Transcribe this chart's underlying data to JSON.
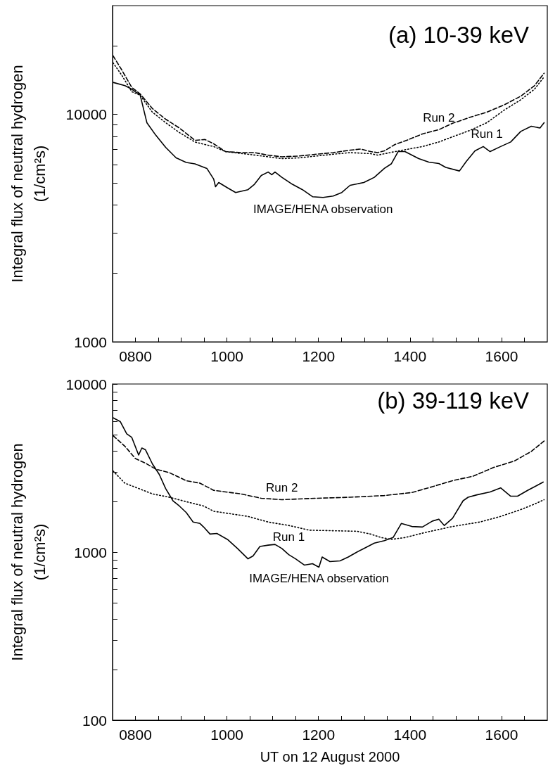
{
  "chart_data": [
    {
      "type": "line",
      "title": "(a) 10-39 keV",
      "ylabel": "Integral flux of neutral hydrogen\n(1/cm²s)",
      "log": "y",
      "grid": false,
      "xlim": [
        750,
        1700
      ],
      "ylim": [
        1000,
        30000
      ],
      "xticks": [
        {
          "value": 800,
          "label": "0800"
        },
        {
          "value": 850,
          "label": null
        },
        {
          "value": 900,
          "label": null
        },
        {
          "value": 950,
          "label": null
        },
        1000,
        {
          "value": 1050,
          "label": null
        },
        {
          "value": 1100,
          "label": null
        },
        {
          "value": 1150,
          "label": null
        },
        1200,
        {
          "value": 1250,
          "label": null
        },
        {
          "value": 1300,
          "label": null
        },
        {
          "value": 1350,
          "label": null
        },
        1400,
        {
          "value": 1450,
          "label": null
        },
        {
          "value": 1500,
          "label": null
        },
        {
          "value": 1550,
          "label": null
        },
        1600,
        {
          "value": 1650,
          "label": null
        }
      ],
      "yticks": [
        1000,
        {
          "value": 2000,
          "label": null
        },
        {
          "value": 3000,
          "label": null
        },
        {
          "value": 4000,
          "label": null
        },
        {
          "value": 5000,
          "label": null
        },
        {
          "value": 6000,
          "label": null
        },
        {
          "value": 7000,
          "label": null
        },
        {
          "value": 8000,
          "label": null
        },
        {
          "value": 9000,
          "label": null
        },
        10000,
        {
          "value": 20000,
          "label": null
        }
      ],
      "series": [
        {
          "color": "#000000",
          "line_style": "solid",
          "x": [
            751,
            777,
            792,
            803,
            810,
            825,
            844,
            866,
            889,
            911,
            930,
            956,
            971,
            975,
            982,
            1001,
            1019,
            1046,
            1060,
            1075,
            1090,
            1098,
            1105,
            1120,
            1143,
            1165,
            1187,
            1210,
            1232,
            1251,
            1269,
            1299,
            1322,
            1344,
            1359,
            1374,
            1389,
            1419,
            1441,
            1463,
            1478,
            1508,
            1523,
            1542,
            1560,
            1575,
            1598,
            1620,
            1642,
            1665,
            1684,
            1693
          ],
          "values": [
            13800,
            13350,
            12880,
            12430,
            12210,
            9180,
            8110,
            7150,
            6430,
            6140,
            6050,
            5780,
            5190,
            4800,
            5010,
            4750,
            4530,
            4660,
            4920,
            5380,
            5570,
            5420,
            5570,
            5280,
            4920,
            4660,
            4340,
            4310,
            4370,
            4530,
            4870,
            5010,
            5280,
            5780,
            6050,
            6850,
            6850,
            6380,
            6160,
            6070,
            5840,
            5630,
            6200,
            6900,
            7210,
            6850,
            7210,
            7550,
            8400,
            8850,
            8700,
            9180
          ]
        },
        {
          "color": "#000000",
          "line_style": "dashed",
          "x": [
            751,
            770,
            792,
            810,
            837,
            866,
            896,
            930,
            952,
            971,
            997,
            1031,
            1060,
            1090,
            1120,
            1157,
            1195,
            1232,
            1269,
            1292,
            1314,
            1329,
            1344,
            1367,
            1397,
            1427,
            1463,
            1493,
            1531,
            1568,
            1605,
            1642,
            1672,
            1693
          ],
          "values": [
            18070,
            15670,
            13110,
            12300,
            10590,
            9510,
            8700,
            7680,
            7740,
            7410,
            6850,
            6780,
            6780,
            6610,
            6500,
            6550,
            6670,
            6780,
            6950,
            7030,
            6850,
            6780,
            6900,
            7360,
            7740,
            8190,
            8550,
            9120,
            9690,
            10210,
            10970,
            12000,
            13350,
            15130
          ]
        },
        {
          "color": "#000000",
          "line_style": "dotted",
          "x": [
            751,
            770,
            792,
            810,
            837,
            866,
            896,
            930,
            952,
            971,
            997,
            1046,
            1090,
            1120,
            1157,
            1195,
            1232,
            1269,
            1314,
            1329,
            1367,
            1397,
            1427,
            1463,
            1493,
            1531,
            1568,
            1605,
            1642,
            1672,
            1693
          ],
          "values": [
            16830,
            14850,
            12560,
            12130,
            10210,
            9180,
            8310,
            7550,
            7360,
            7210,
            6850,
            6670,
            6500,
            6380,
            6430,
            6550,
            6670,
            6780,
            6710,
            6610,
            6850,
            7030,
            7210,
            7550,
            7960,
            8490,
            9180,
            10400,
            11570,
            12880,
            14590
          ]
        }
      ],
      "annotations": [
        {
          "text": "Run 2",
          "x": 1463,
          "y": 8550
        },
        {
          "text": "Run 1",
          "x": 1568,
          "y": 9180
        },
        {
          "text": "IMAGE/HENA observation",
          "x": 1210,
          "y": 4310
        }
      ]
    },
    {
      "type": "line",
      "title": "(b) 39-119 keV",
      "xlabel": "UT on 12 August 2000",
      "ylabel": "Integral flux of neutral hydrogen\n(1/cm²s)",
      "log": "y",
      "grid": false,
      "xlim": [
        750,
        1700
      ],
      "ylim": [
        100,
        10000
      ],
      "xticks": [
        {
          "value": 800,
          "label": "0800"
        },
        {
          "value": 850,
          "label": null
        },
        {
          "value": 900,
          "label": null
        },
        {
          "value": 950,
          "label": null
        },
        1000,
        {
          "value": 1050,
          "label": null
        },
        {
          "value": 1100,
          "label": null
        },
        {
          "value": 1150,
          "label": null
        },
        1200,
        {
          "value": 1250,
          "label": null
        },
        {
          "value": 1300,
          "label": null
        },
        {
          "value": 1350,
          "label": null
        },
        1400,
        {
          "value": 1450,
          "label": null
        },
        {
          "value": 1500,
          "label": null
        },
        {
          "value": 1550,
          "label": null
        },
        1600,
        {
          "value": 1650,
          "label": null
        }
      ],
      "yticks": [
        100,
        {
          "value": 200,
          "label": null
        },
        {
          "value": 300,
          "label": null
        },
        {
          "value": 400,
          "label": null
        },
        {
          "value": 500,
          "label": null
        },
        {
          "value": 600,
          "label": null
        },
        {
          "value": 700,
          "label": null
        },
        {
          "value": 800,
          "label": null
        },
        {
          "value": 900,
          "label": null
        },
        1000,
        {
          "value": 2000,
          "label": null
        },
        {
          "value": 3000,
          "label": null
        },
        {
          "value": 4000,
          "label": null
        },
        {
          "value": 5000,
          "label": null
        },
        {
          "value": 6000,
          "label": null
        },
        {
          "value": 7000,
          "label": null
        },
        {
          "value": 8000,
          "label": null
        },
        {
          "value": 9000,
          "label": null
        },
        10000
      ],
      "series": [
        {
          "color": "#000000",
          "line_style": "solid",
          "x": [
            751,
            767,
            781,
            792,
            807,
            814,
            822,
            837,
            852,
            866,
            882,
            896,
            911,
            926,
            941,
            949,
            963,
            978,
            1001,
            1023,
            1046,
            1057,
            1072,
            1090,
            1105,
            1120,
            1135,
            1150,
            1169,
            1187,
            1201,
            1208,
            1225,
            1247,
            1265,
            1284,
            1299,
            1322,
            1344,
            1363,
            1381,
            1404,
            1427,
            1449,
            1463,
            1475,
            1493,
            1516,
            1527,
            1546,
            1575,
            1598,
            1620,
            1635,
            1657,
            1676,
            1691
          ],
          "values": [
            6300,
            5970,
            5050,
            4810,
            3780,
            4160,
            4060,
            3350,
            2900,
            2390,
            2020,
            1880,
            1720,
            1510,
            1480,
            1410,
            1280,
            1290,
            1190,
            1050,
            912,
            948,
            1080,
            1100,
            1110,
            1050,
            966,
            912,
            837,
            853,
            813,
            935,
            878,
            887,
            935,
            1000,
            1050,
            1130,
            1170,
            1220,
            1480,
            1420,
            1410,
            1530,
            1570,
            1440,
            1590,
            2020,
            2120,
            2190,
            2280,
            2410,
            2150,
            2150,
            2330,
            2480,
            2610
          ]
        },
        {
          "color": "#000000",
          "line_style": "dashed",
          "x": [
            751,
            777,
            800,
            822,
            844,
            874,
            911,
            941,
            971,
            1030,
            1075,
            1120,
            1195,
            1269,
            1344,
            1404,
            1449,
            1493,
            1538,
            1583,
            1628,
            1665,
            1693
          ],
          "values": [
            4930,
            4260,
            3600,
            3380,
            3120,
            2970,
            2660,
            2570,
            2330,
            2220,
            2090,
            2050,
            2090,
            2120,
            2170,
            2260,
            2450,
            2660,
            2830,
            3190,
            3480,
            3970,
            4580
          ]
        },
        {
          "color": "#000000",
          "line_style": "dotted",
          "x": [
            751,
            777,
            807,
            837,
            874,
            919,
            949,
            971,
            1008,
            1046,
            1090,
            1135,
            1180,
            1232,
            1284,
            1314,
            1337,
            1359,
            1389,
            1434,
            1493,
            1553,
            1598,
            1642,
            1672,
            1693
          ],
          "values": [
            3040,
            2570,
            2390,
            2220,
            2120,
            1970,
            1880,
            1750,
            1690,
            1630,
            1510,
            1440,
            1350,
            1340,
            1330,
            1280,
            1220,
            1190,
            1220,
            1310,
            1420,
            1510,
            1630,
            1790,
            1930,
            2050
          ]
        }
      ],
      "annotations": [
        {
          "text": "Run 2",
          "x": 1120,
          "y": 2050
        },
        {
          "text": "Run 1",
          "x": 1135,
          "y": 1440
        },
        {
          "text": "IMAGE/HENA observation",
          "x": 1201,
          "y": 813
        }
      ]
    }
  ]
}
